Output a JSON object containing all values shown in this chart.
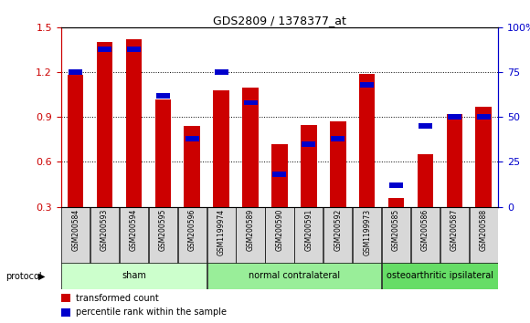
{
  "title": "GDS2809 / 1378377_at",
  "samples": [
    "GSM200584",
    "GSM200593",
    "GSM200594",
    "GSM200595",
    "GSM200596",
    "GSM1199974",
    "GSM200589",
    "GSM200590",
    "GSM200591",
    "GSM200592",
    "GSM1199973",
    "GSM200585",
    "GSM200586",
    "GSM200587",
    "GSM200588"
  ],
  "red_values": [
    1.18,
    1.4,
    1.42,
    1.02,
    0.84,
    1.08,
    1.1,
    0.72,
    0.85,
    0.87,
    1.19,
    0.36,
    0.65,
    0.92,
    0.97
  ],
  "blue_values": [
    75,
    88,
    88,
    62,
    38,
    75,
    58,
    18,
    35,
    38,
    68,
    12,
    45,
    50,
    50
  ],
  "ylim_left": [
    0.3,
    1.5
  ],
  "ylim_right": [
    0,
    100
  ],
  "grid_values": [
    0.3,
    0.6,
    0.9,
    1.2,
    1.5
  ],
  "grid_values_right": [
    0,
    25,
    50,
    75,
    100
  ],
  "groups": [
    {
      "label": "sham",
      "start": 0,
      "end": 5,
      "color": "#ccffcc"
    },
    {
      "label": "normal contralateral",
      "start": 5,
      "end": 11,
      "color": "#99ee99"
    },
    {
      "label": "osteoarthritic ipsilateral",
      "start": 11,
      "end": 15,
      "color": "#66dd66"
    }
  ],
  "red_color": "#cc0000",
  "blue_color": "#0000cc",
  "left_axis_color": "#cc0000",
  "right_axis_color": "#0000cc",
  "tick_label_bg": "#d8d8d8",
  "legend_items": [
    {
      "color": "#cc0000",
      "label": "transformed count"
    },
    {
      "color": "#0000cc",
      "label": "percentile rank within the sample"
    }
  ]
}
